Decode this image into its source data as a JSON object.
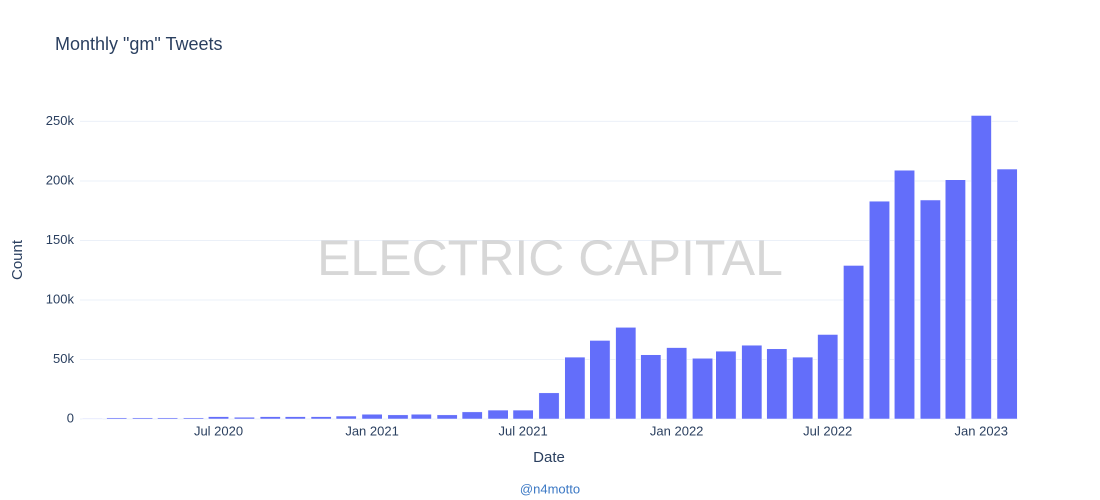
{
  "chart_data": {
    "type": "bar",
    "title": "Monthly \"gm\" Tweets",
    "x_label": "Date",
    "y_label": "Count",
    "watermark": "ELECTRIC CAPITAL",
    "annotation": "@n4motto",
    "x": [
      "2020-02",
      "2020-03",
      "2020-04",
      "2020-05",
      "2020-06",
      "2020-07",
      "2020-08",
      "2020-09",
      "2020-10",
      "2020-11",
      "2020-12",
      "2021-01",
      "2021-02",
      "2021-03",
      "2021-04",
      "2021-05",
      "2021-06",
      "2021-07",
      "2021-08",
      "2021-09",
      "2021-10",
      "2021-11",
      "2021-12",
      "2022-01",
      "2022-02",
      "2022-03",
      "2022-04",
      "2022-05",
      "2022-06",
      "2022-07",
      "2022-08",
      "2022-09",
      "2022-10",
      "2022-11",
      "2022-12",
      "2023-01",
      "2023-02"
    ],
    "values": [
      500,
      1000,
      1000,
      1000,
      1000,
      2000,
      1500,
      2000,
      2000,
      2000,
      2500,
      4000,
      3500,
      4000,
      3500,
      6000,
      7500,
      7500,
      22000,
      52000,
      66000,
      77000,
      54000,
      60000,
      51000,
      57000,
      62000,
      59000,
      52000,
      71000,
      129000,
      183000,
      209000,
      184000,
      201000,
      255000,
      210000
    ],
    "color": "#636efa",
    "xlim": [
      "2020-01-17",
      "2023-02-14"
    ],
    "xticks": [
      {
        "value": "2020-07",
        "label": "Jul 2020"
      },
      {
        "value": "2021-01",
        "label": "Jan 2021"
      },
      {
        "value": "2021-07",
        "label": "Jul 2021"
      },
      {
        "value": "2022-01",
        "label": "Jan 2022"
      },
      {
        "value": "2022-07",
        "label": "Jul 2022"
      },
      {
        "value": "2023-01",
        "label": "Jan 2023"
      }
    ],
    "ylim": [
      0,
      268000
    ],
    "yticks": [
      0,
      {
        "value": 50000,
        "label": "50k"
      },
      {
        "value": 100000,
        "label": "100k"
      },
      {
        "value": 150000,
        "label": "150k"
      },
      {
        "value": 200000,
        "label": "200k"
      },
      {
        "value": 250000,
        "label": "250k"
      }
    ],
    "grid": true
  }
}
